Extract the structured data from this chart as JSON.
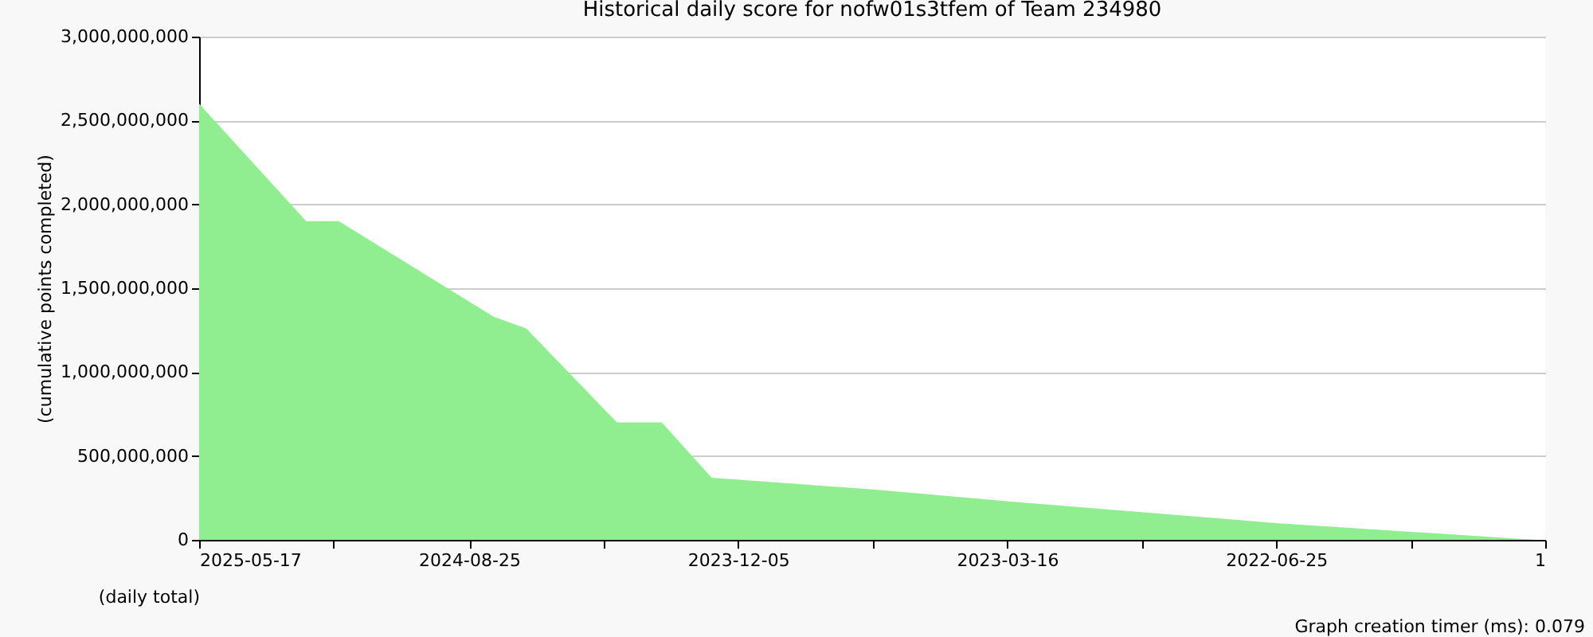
{
  "chart_data": {
    "type": "area",
    "title": "Historical daily score for nofw01s3tfem of Team 234980",
    "xlabel": "(daily total)",
    "ylabel": "(cumulative points completed)",
    "x": [
      "2025-05-17",
      "2025-02-01",
      "2024-12-31",
      "2024-08-01",
      "2024-06-30",
      "2024-04-02",
      "2024-02-18",
      "2023-12-31",
      "2023-07-25",
      "2023-03-16",
      "2022-06-25",
      "2021-10-13"
    ],
    "series": [
      {
        "color": "#90ee90",
        "values": [
          2600000000,
          1900000000,
          1900000000,
          1330000000,
          1260000000,
          700000000,
          700000000,
          370000000,
          300000000,
          230000000,
          100000000,
          0
        ]
      }
    ],
    "xlim": [
      "2025-05-17",
      "2021-10-04"
    ],
    "xticks": [
      "2025-05-17",
      {
        "value": "2025-01-05",
        "label": null
      },
      "2024-08-25",
      {
        "value": "2024-04-15",
        "label": null
      },
      "2023-12-05",
      {
        "value": "2023-07-26",
        "label": null
      },
      "2023-03-16",
      {
        "value": "2022-11-04",
        "label": null
      },
      "2022-06-25",
      {
        "value": "2022-02-13",
        "label": null
      },
      {
        "value": "2021-10-04",
        "label": "1"
      }
    ],
    "ylim": [
      0,
      3000000000
    ],
    "yticks": [
      0,
      {
        "value": 500000000,
        "label": "500,000,000"
      },
      {
        "value": 1000000000,
        "label": "1,000,000,000"
      },
      {
        "value": 1500000000,
        "label": "1,500,000,000"
      },
      {
        "value": 2000000000,
        "label": "2,000,000,000"
      },
      {
        "value": 2500000000,
        "label": "2,500,000,000"
      },
      {
        "value": 3000000000,
        "label": "3,000,000,000"
      }
    ],
    "grid": "y",
    "annotations": [
      "Graph creation timer (ms): 0.079"
    ]
  }
}
